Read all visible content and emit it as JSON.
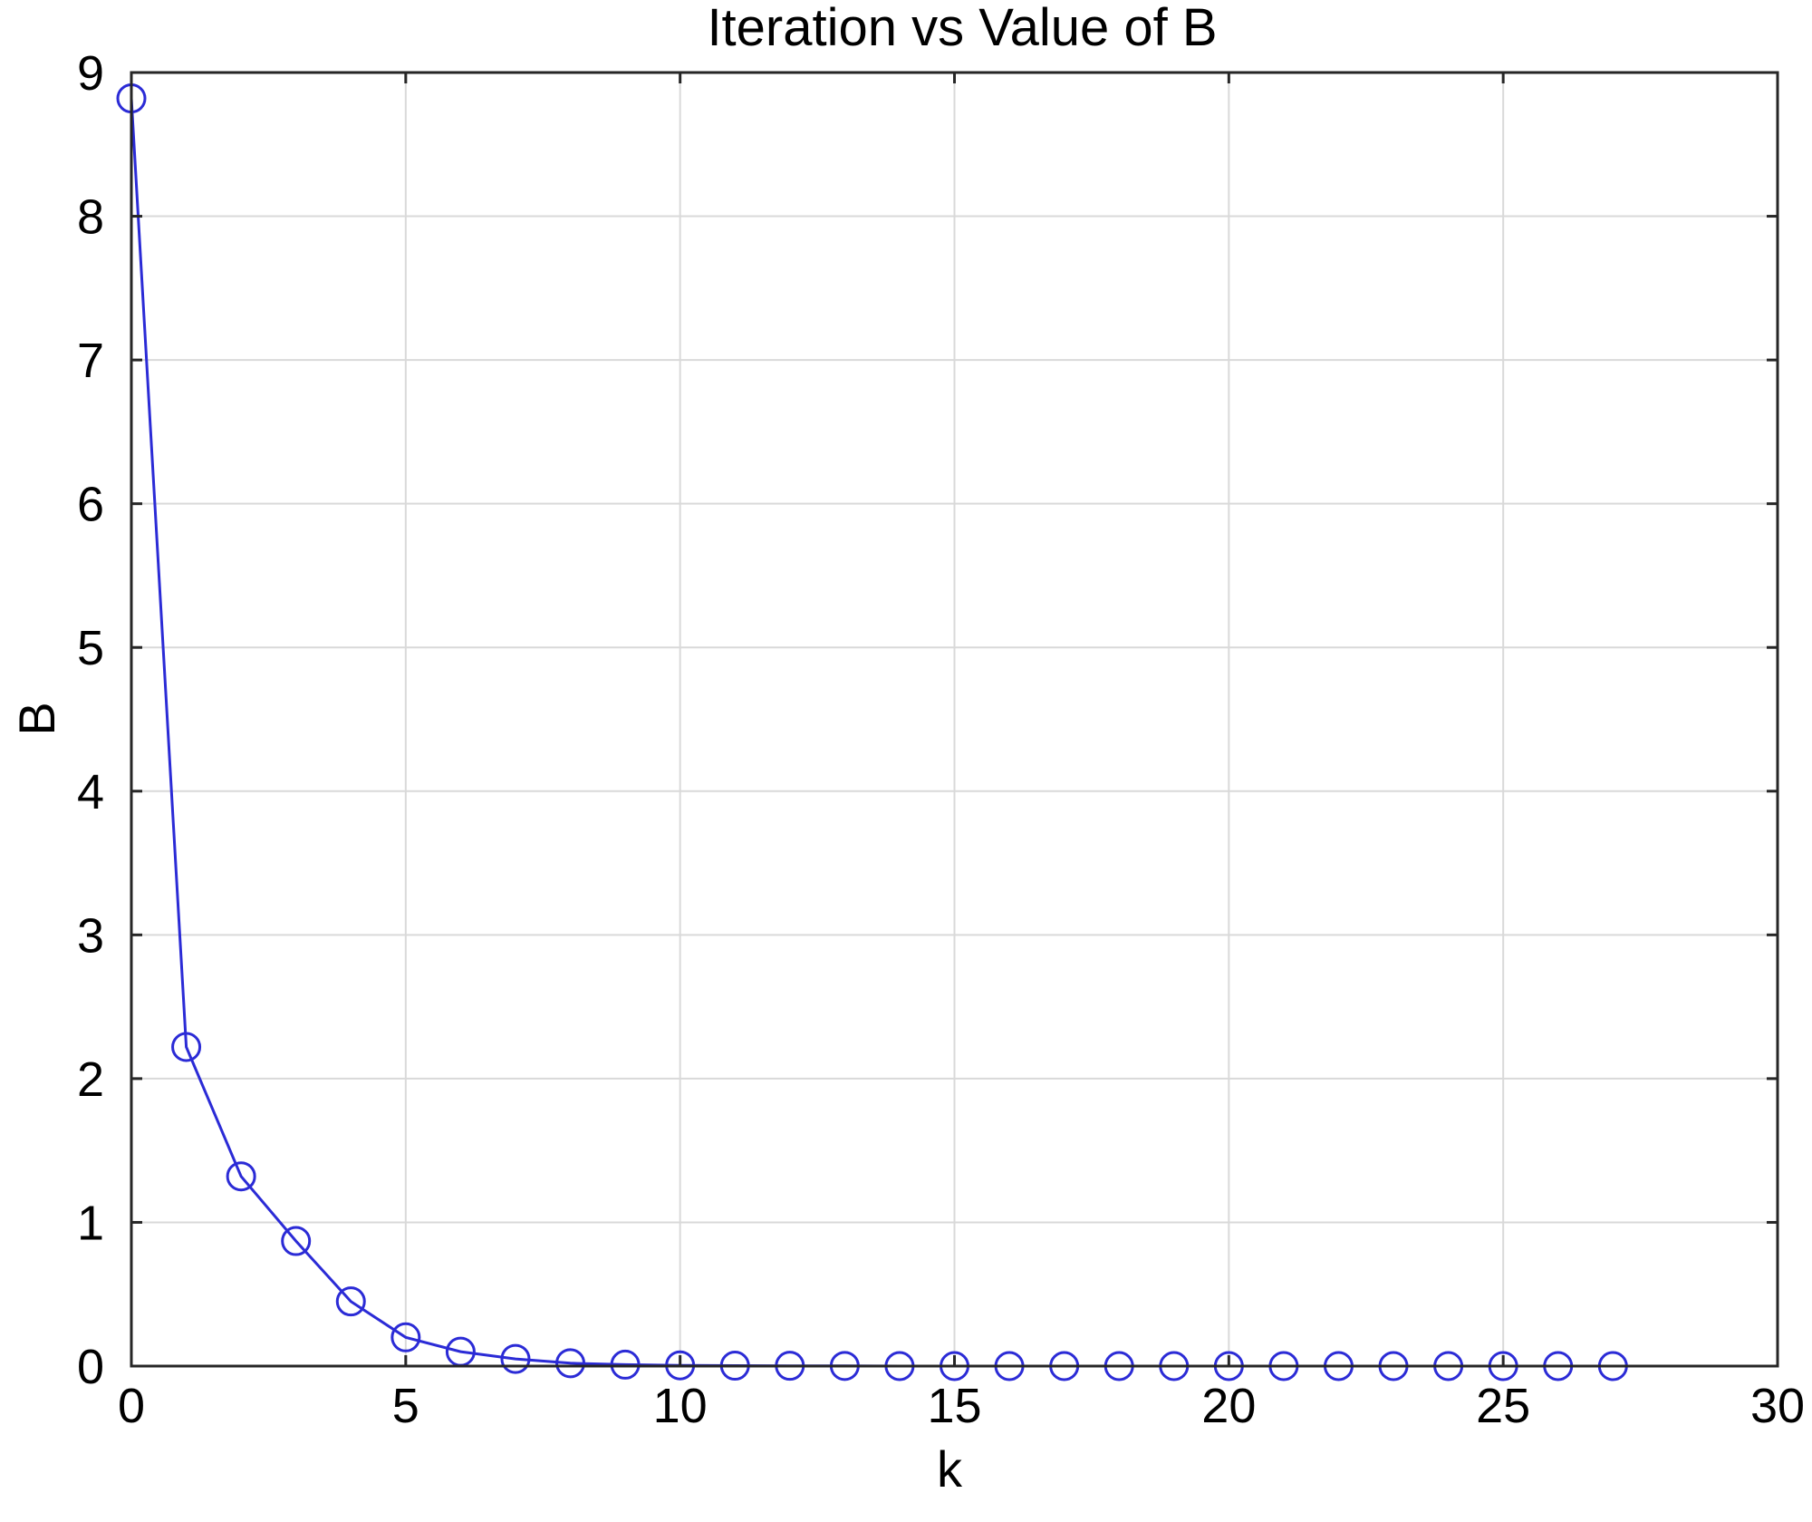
{
  "chart_data": {
    "type": "line",
    "title": "Iteration vs Value of B",
    "xlabel": "k",
    "ylabel": "B",
    "xlim": [
      0,
      30
    ],
    "ylim": [
      0,
      9
    ],
    "xticks": [
      0,
      5,
      10,
      15,
      20,
      25,
      30
    ],
    "yticks": [
      0,
      1,
      2,
      3,
      4,
      5,
      6,
      7,
      8,
      9
    ],
    "grid": true,
    "legend": "none",
    "series": [
      {
        "color": "#2b2bd6",
        "marker": "circle",
        "x": [
          0,
          1,
          2,
          3,
          4,
          5,
          6,
          7,
          8,
          9,
          10,
          11,
          12,
          13,
          14,
          15,
          16,
          17,
          18,
          19,
          20,
          21,
          22,
          23,
          24,
          25,
          26,
          27
        ],
        "y": [
          8.82,
          2.22,
          1.32,
          0.87,
          0.45,
          0.2,
          0.1,
          0.05,
          0.02,
          0.01,
          0.005,
          0.003,
          0.002,
          0.001,
          0,
          0,
          0,
          0,
          0,
          0,
          0,
          0,
          0,
          0,
          0,
          0,
          0,
          0
        ]
      }
    ]
  }
}
